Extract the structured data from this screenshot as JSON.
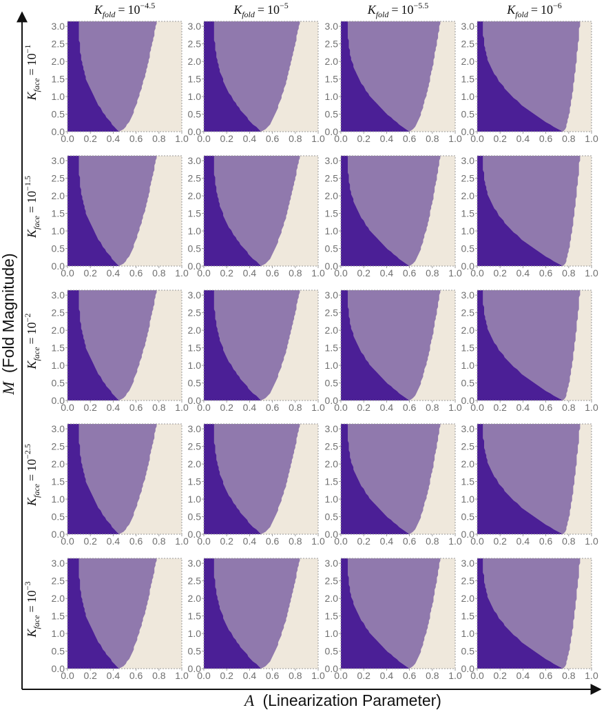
{
  "figure": {
    "x_axis_title": "(Linearization Parameter)",
    "x_axis_symbol": "A",
    "y_axis_title": "(Fold Magnitude)",
    "y_axis_symbol": "M",
    "column_symbol": "K",
    "column_subscript": "fold",
    "row_symbol": "K",
    "row_subscript": "face",
    "equals": "=",
    "base": "10",
    "col_exponents": [
      "−4.5",
      "−5",
      "−5.5",
      "−6"
    ],
    "row_exponents": [
      "−1",
      "−1.5",
      "−2",
      "−2.5",
      "−3"
    ]
  },
  "colors": {
    "dark": "#4b1f96",
    "light": "#9079ad",
    "background": "#efe8dc",
    "axis": "#999999",
    "text": "#111111"
  },
  "chart_data": {
    "type": "heatmap",
    "layout": "grid of 5 rows x 4 columns of region maps",
    "xlabel": "A (Linearization Parameter)",
    "ylabel": "M (Fold Magnitude)",
    "xlim": [
      0,
      1
    ],
    "ylim": [
      0,
      3.14
    ],
    "x_ticks": [
      "0.0",
      "0.2",
      "0.4",
      "0.6",
      "0.8",
      "1.0"
    ],
    "y_ticks": [
      "0.0",
      "0.5",
      "1.0",
      "1.5",
      "2.0",
      "2.5",
      "3.0"
    ],
    "regions": [
      "dark purple",
      "light purple",
      "cream"
    ],
    "columns": [
      "K_fold = 10^-4.5",
      "K_fold = 10^-5",
      "K_fold = 10^-5.5",
      "K_fold = 10^-6"
    ],
    "rows": [
      "K_face = 10^-1",
      "K_face = 10^-1.5",
      "K_face = 10^-2",
      "K_face = 10^-2.5",
      "K_face = 10^-3"
    ],
    "boundary_description": "Dark region on the left bounded by a curve falling from A≈0.1 at top to A≈0.45 at M=0; light purple U-shaped region in the middle whose right edge rises from A≈0.45 near M=0 to A≈0.85 at M=3.14; cream region on the right.",
    "column_params": [
      {
        "dark_top_A": 0.1,
        "tip_A": 0.45,
        "right_top_A": 0.78
      },
      {
        "dark_top_A": 0.09,
        "tip_A": 0.5,
        "right_top_A": 0.84
      },
      {
        "dark_top_A": 0.06,
        "tip_A": 0.6,
        "right_top_A": 0.87
      },
      {
        "dark_top_A": 0.05,
        "tip_A": 0.75,
        "right_top_A": 0.9
      }
    ]
  }
}
